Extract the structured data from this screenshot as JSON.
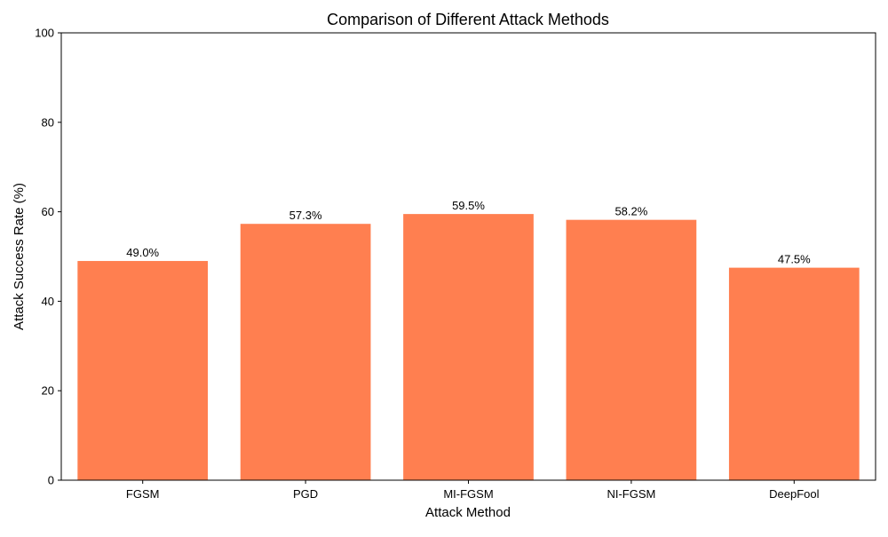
{
  "chart_data": {
    "type": "bar",
    "title": "Comparison of Different Attack Methods",
    "xlabel": "Attack Method",
    "ylabel": "Attack Success Rate (%)",
    "categories": [
      "FGSM",
      "PGD",
      "MI-FGSM",
      "NI-FGSM",
      "DeepFool"
    ],
    "values": [
      49.0,
      57.3,
      59.5,
      58.2,
      47.5
    ],
    "data_labels": [
      "49.0%",
      "57.3%",
      "59.5%",
      "58.2%",
      "47.5%"
    ],
    "ylim": [
      0,
      100
    ],
    "yticks": [
      0,
      20,
      40,
      60,
      80,
      100
    ],
    "grid": false,
    "bar_color": "#ff7f50"
  }
}
